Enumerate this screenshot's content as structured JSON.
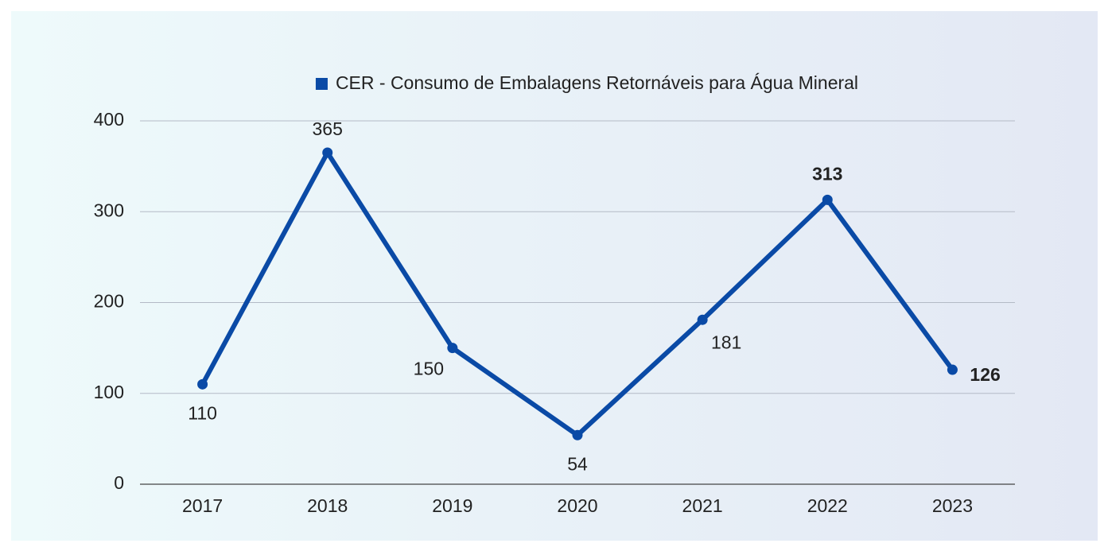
{
  "chart_data": {
    "type": "line",
    "categories": [
      "2017",
      "2018",
      "2019",
      "2020",
      "2021",
      "2022",
      "2023"
    ],
    "series": [
      {
        "name": "CER - Consumo de Embalagens Retornáveis para Água Mineral",
        "color": "#0a4aa6",
        "values": [
          110,
          365,
          150,
          54,
          181,
          313,
          126
        ]
      }
    ],
    "label_colors": [
      "#222222",
      "#222222",
      "#222222",
      "#222222",
      "#222222",
      "#f26468",
      "#0a4aa6"
    ],
    "ylim": [
      0,
      400
    ],
    "yticks": [
      0,
      100,
      200,
      300,
      400
    ],
    "grid": true,
    "legend": "top"
  }
}
